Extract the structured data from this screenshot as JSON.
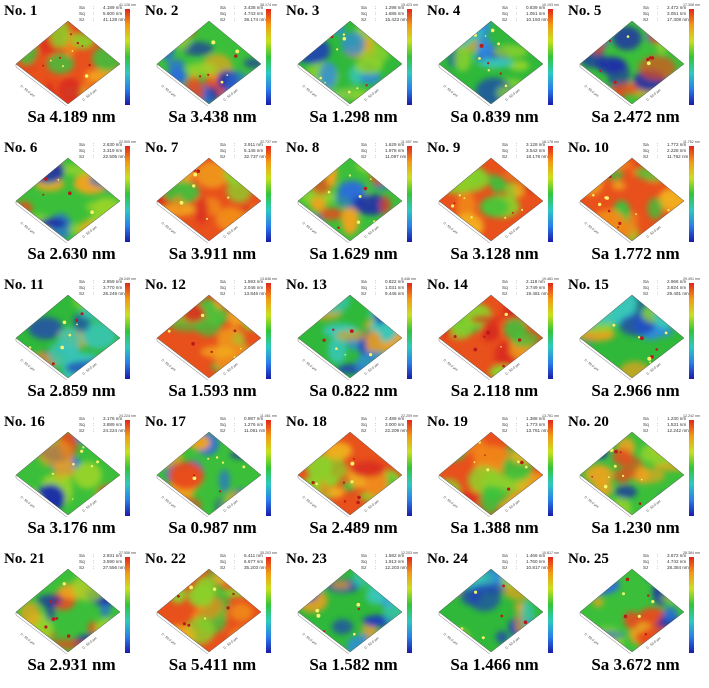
{
  "panels": [
    {
      "num": "No. 1",
      "sa_label": "Sa 4.189 nm",
      "stats": {
        "sa": "4.189 nm",
        "sq": "5.600 nm",
        "sz": "41.128 nm"
      },
      "zmax": "41.128 nm",
      "palette": "warm"
    },
    {
      "num": "No. 2",
      "sa_label": "Sa 3.438 nm",
      "stats": {
        "sa": "3.438 nm",
        "sq": "4.743 nm",
        "sz": "38.174 nm"
      },
      "zmax": "38.174 nm",
      "palette": "mixed"
    },
    {
      "num": "No. 3",
      "sa_label": "Sa 1.298 nm",
      "stats": {
        "sa": "1.298 nm",
        "sq": "1.686 nm",
        "sz": "15.423 nm"
      },
      "zmax": "15.423 nm",
      "palette": "cool"
    },
    {
      "num": "No. 4",
      "sa_label": "Sa 0.839 nm",
      "stats": {
        "sa": "0.839 nm",
        "sq": "1.051 nm",
        "sz": "10.193 nm"
      },
      "zmax": "10.193 nm",
      "palette": "cool"
    },
    {
      "num": "No. 5",
      "sa_label": "Sa 2.472 nm",
      "stats": {
        "sa": "2.472 nm",
        "sq": "3.051 nm",
        "sz": "17.308 nm"
      },
      "zmax": "17.308 nm",
      "palette": "mixed"
    },
    {
      "num": "No. 6",
      "sa_label": "Sa 2.630 nm",
      "stats": {
        "sa": "2.630 nm",
        "sq": "3.319 nm",
        "sz": "22.505 nm"
      },
      "zmax": "22.505 nm",
      "palette": "mixed"
    },
    {
      "num": "No. 7",
      "sa_label": "Sa 3.911 nm",
      "stats": {
        "sa": "3.911 nm",
        "sq": "5.145 nm",
        "sz": "32.737 nm"
      },
      "zmax": "32.737 nm",
      "palette": "warm"
    },
    {
      "num": "No. 8",
      "sa_label": "Sa 1.629 nm",
      "stats": {
        "sa": "1.629 nm",
        "sq": "1.978 nm",
        "sz": "11.097 nm"
      },
      "zmax": "11.097 nm",
      "palette": "mixed"
    },
    {
      "num": "No. 9",
      "sa_label": "Sa 3.128 nm",
      "stats": {
        "sa": "3.128 nm",
        "sq": "3.542 nm",
        "sz": "18.178 nm"
      },
      "zmax": "18.178 nm",
      "palette": "warm"
    },
    {
      "num": "No. 10",
      "sa_label": "Sa 1.772 nm",
      "stats": {
        "sa": "1.772 nm",
        "sq": "2.228 nm",
        "sz": "11.762 nm"
      },
      "zmax": "11.762 nm",
      "palette": "warm"
    },
    {
      "num": "No. 11",
      "sa_label": "Sa 2.859 nm",
      "stats": {
        "sa": "2.859 nm",
        "sq": "3.770 nm",
        "sz": "26.249 nm"
      },
      "zmax": "26.249 nm",
      "palette": "cool"
    },
    {
      "num": "No. 12",
      "sa_label": "Sa 1.593 nm",
      "stats": {
        "sa": "1.593 nm",
        "sq": "2.046 nm",
        "sz": "13.846 nm"
      },
      "zmax": "13.846 nm",
      "palette": "warm"
    },
    {
      "num": "No. 13",
      "sa_label": "Sa 0.822 nm",
      "stats": {
        "sa": "0.822 nm",
        "sq": "1.031 nm",
        "sz": "9.446 nm"
      },
      "zmax": "9.446 nm",
      "palette": "cool"
    },
    {
      "num": "No. 14",
      "sa_label": "Sa 2.118 nm",
      "stats": {
        "sa": "2.118 nm",
        "sq": "2.749 nm",
        "sz": "19.481 nm"
      },
      "zmax": "19.481 nm",
      "palette": "warm"
    },
    {
      "num": "No. 15",
      "sa_label": "Sa 2.966 nm",
      "stats": {
        "sa": "2.966 nm",
        "sq": "3.824 nm",
        "sz": "29.491 nm"
      },
      "zmax": "29.491 nm",
      "palette": "cool"
    },
    {
      "num": "No. 16",
      "sa_label": "Sa 3.176 nm",
      "stats": {
        "sa": "3.176 nm",
        "sq": "3.889 nm",
        "sz": "24.224 nm"
      },
      "zmax": "24.224 nm",
      "palette": "mixed"
    },
    {
      "num": "No. 17",
      "sa_label": "Sa 0.987 nm",
      "stats": {
        "sa": "0.987 nm",
        "sq": "1.276 nm",
        "sz": "11.061 nm"
      },
      "zmax": "11.061 nm",
      "palette": "mixed"
    },
    {
      "num": "No. 18",
      "sa_label": "Sa 2.489 nm",
      "stats": {
        "sa": "2.489 nm",
        "sq": "3.000 nm",
        "sz": "22.209 nm"
      },
      "zmax": "22.209 nm",
      "palette": "warm"
    },
    {
      "num": "No. 19",
      "sa_label": "Sa 1.388 nm",
      "stats": {
        "sa": "1.388 nm",
        "sq": "1.773 nm",
        "sz": "13.761 nm"
      },
      "zmax": "13.761 nm",
      "palette": "warm"
    },
    {
      "num": "No. 20",
      "sa_label": "Sa 1.230 nm",
      "stats": {
        "sa": "1.230 nm",
        "sq": "1.531 nm",
        "sz": "12.242 nm"
      },
      "zmax": "12.242 nm",
      "palette": "mixed"
    },
    {
      "num": "No. 21",
      "sa_label": "Sa 2.931 nm",
      "stats": {
        "sa": "2.931 nm",
        "sq": "3.590 nm",
        "sz": "27.556 nm"
      },
      "zmax": "27.556 nm",
      "palette": "mixed"
    },
    {
      "num": "No. 22",
      "sa_label": "Sa 5.411 nm",
      "stats": {
        "sa": "5.411 nm",
        "sq": "6.677 nm",
        "sz": "35.203 nm"
      },
      "zmax": "35.203 nm",
      "palette": "warm"
    },
    {
      "num": "No. 23",
      "sa_label": "Sa 1.582 nm",
      "stats": {
        "sa": "1.582 nm",
        "sq": "1.913 nm",
        "sz": "12.203 nm"
      },
      "zmax": "12.203 nm",
      "palette": "cool"
    },
    {
      "num": "No. 24",
      "sa_label": "Sa 1.466 nm",
      "stats": {
        "sa": "1.466 nm",
        "sq": "1.760 nm",
        "sz": "10.817 nm"
      },
      "zmax": "10.817 nm",
      "palette": "cool"
    },
    {
      "num": "No. 25",
      "sa_label": "Sa 3.672 nm",
      "stats": {
        "sa": "3.672 nm",
        "sq": "4.742 nm",
        "sz": "28.384 nm"
      },
      "zmax": "28.384 nm",
      "palette": "mixed"
    }
  ],
  "stat_keys": {
    "sa": "Sa",
    "sq": "Sq",
    "sz": "Sz",
    "sep": ":"
  },
  "axis_text": {
    "x": "0 - 50.0 μm",
    "y": "0 - 50.0 μm"
  },
  "colors": {
    "low": "#1a1aa8",
    "mid": "#33c43a",
    "high": "#e0251b"
  }
}
